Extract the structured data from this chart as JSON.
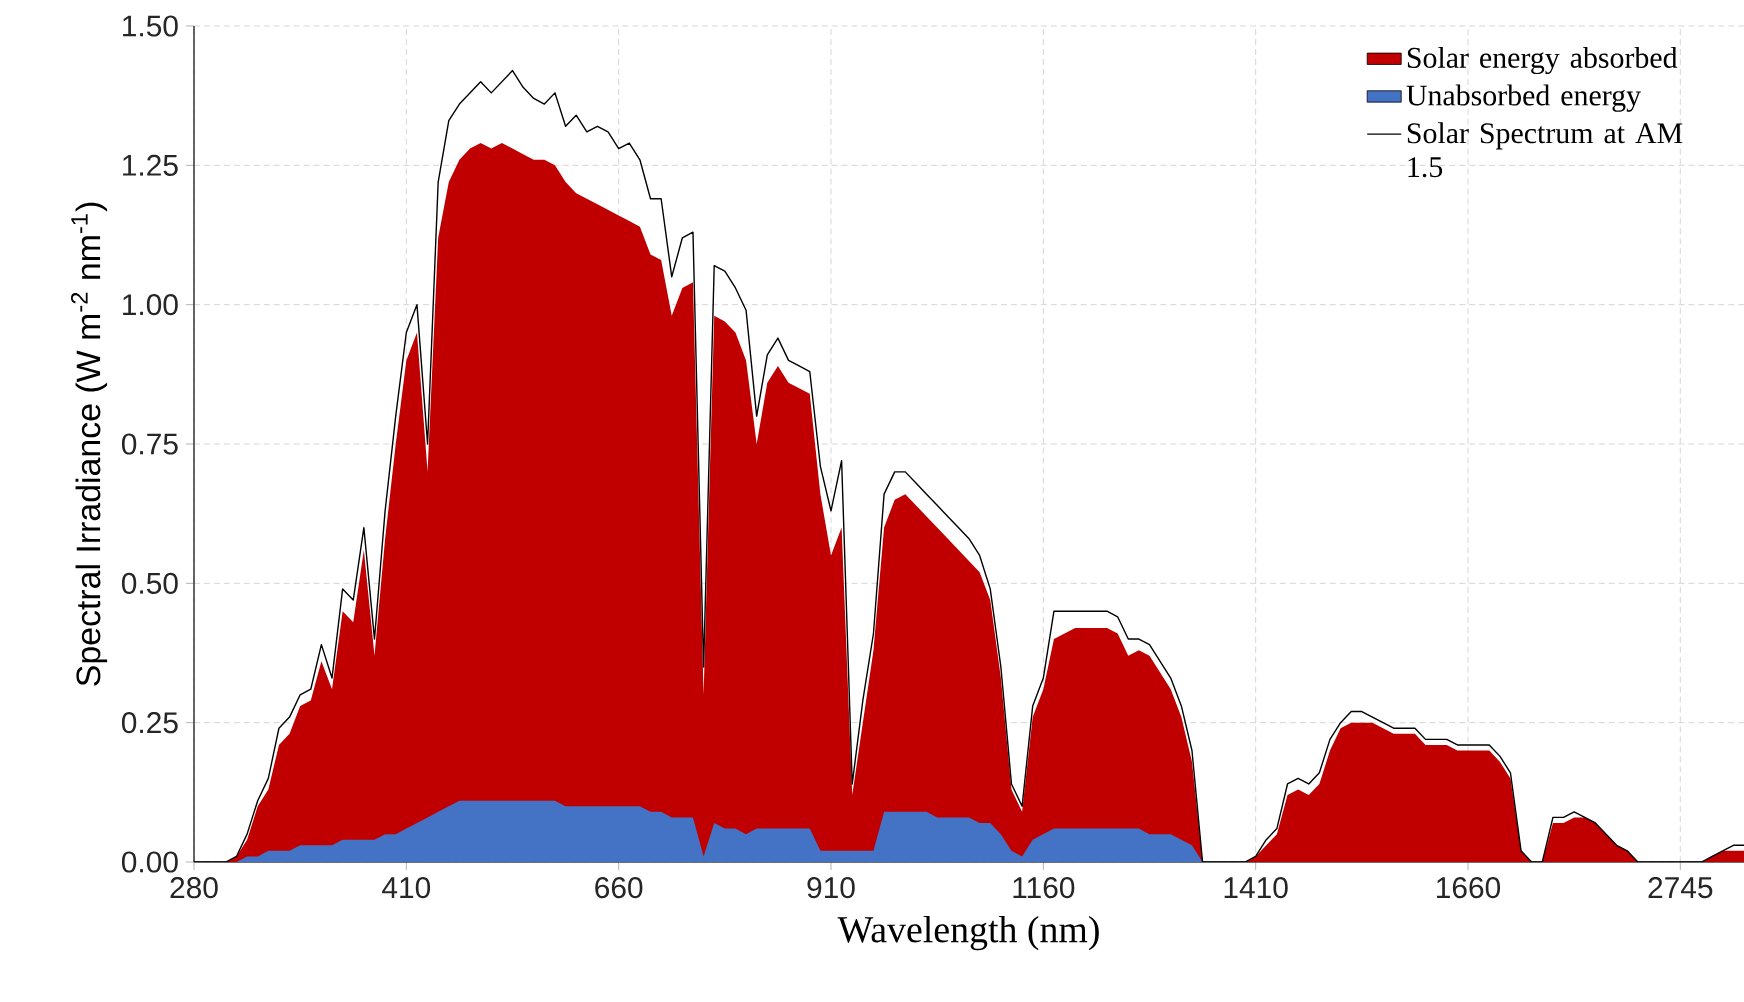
{
  "chart_data": {
    "type": "area",
    "xlabel": "Wavelength  (nm)",
    "ylabel": "Spectral Irradiance (W m$^{-2}$ nm$^{-1}$)",
    "categories": [
      "280",
      null,
      null,
      null,
      null,
      null,
      null,
      null,
      null,
      null,
      null,
      null,
      null,
      null,
      null,
      null,
      null,
      null,
      null,
      null,
      "410",
      null,
      null,
      null,
      null,
      null,
      null,
      null,
      null,
      null,
      null,
      null,
      null,
      null,
      null,
      null,
      null,
      null,
      null,
      null,
      "660",
      null,
      null,
      null,
      null,
      null,
      null,
      null,
      null,
      null,
      null,
      null,
      null,
      null,
      null,
      null,
      null,
      null,
      null,
      null,
      "910",
      null,
      null,
      null,
      null,
      null,
      null,
      null,
      null,
      null,
      null,
      null,
      null,
      null,
      null,
      null,
      null,
      null,
      null,
      null,
      "1160",
      null,
      null,
      null,
      null,
      null,
      null,
      null,
      null,
      null,
      null,
      null,
      null,
      null,
      null,
      null,
      null,
      null,
      null,
      null,
      "1410",
      null,
      null,
      null,
      null,
      null,
      null,
      null,
      null,
      null,
      null,
      null,
      null,
      null,
      null,
      null,
      null,
      null,
      null,
      null,
      "1660",
      null,
      null,
      null,
      null,
      null,
      null,
      null,
      null,
      null,
      null,
      null,
      null,
      null,
      null,
      null,
      null,
      null,
      null,
      null,
      "2745",
      null,
      null,
      null,
      null,
      null,
      null
    ],
    "series": [
      {
        "name": "Solar energy absorbed",
        "color": "#c00000",
        "values": [
          0,
          0,
          0,
          0,
          0.01,
          0.04,
          0.1,
          0.13,
          0.21,
          0.23,
          0.28,
          0.29,
          0.36,
          0.31,
          0.45,
          0.43,
          0.56,
          0.37,
          0.58,
          0.75,
          0.9,
          0.95,
          0.7,
          1.12,
          1.22,
          1.26,
          1.28,
          1.29,
          1.28,
          1.29,
          1.28,
          1.27,
          1.26,
          1.26,
          1.25,
          1.22,
          1.2,
          1.19,
          1.18,
          1.17,
          1.16,
          1.15,
          1.14,
          1.09,
          1.08,
          0.98,
          1.03,
          1.04,
          0.3,
          0.98,
          0.97,
          0.95,
          0.9,
          0.75,
          0.86,
          0.89,
          0.86,
          0.85,
          0.84,
          0.66,
          0.55,
          0.6,
          0.12,
          0.25,
          0.38,
          0.6,
          0.65,
          0.66,
          0.64,
          0.62,
          0.6,
          0.58,
          0.56,
          0.54,
          0.52,
          0.47,
          0.33,
          0.13,
          0.09,
          0.26,
          0.31,
          0.4,
          0.41,
          0.42,
          0.42,
          0.42,
          0.42,
          0.41,
          0.37,
          0.38,
          0.37,
          0.34,
          0.31,
          0.26,
          0.18,
          0,
          0,
          0,
          0,
          0,
          0.01,
          0.03,
          0.05,
          0.12,
          0.13,
          0.12,
          0.14,
          0.2,
          0.24,
          0.25,
          0.25,
          0.25,
          0.24,
          0.23,
          0.23,
          0.23,
          0.21,
          0.21,
          0.21,
          0.2,
          0.2,
          0.2,
          0.2,
          0.18,
          0.15,
          0.02,
          0,
          0,
          0.07,
          0.07,
          0.08,
          0.08,
          0.07,
          0.05,
          0.03,
          0.02,
          0,
          0,
          0,
          0,
          0,
          0,
          0,
          0.01,
          0.02,
          0.02,
          0.02
        ]
      },
      {
        "name": "Unabsorbed energy",
        "color": "#4472c4",
        "values": [
          0,
          0,
          0,
          0,
          0,
          0.01,
          0.01,
          0.02,
          0.02,
          0.02,
          0.03,
          0.03,
          0.03,
          0.03,
          0.04,
          0.04,
          0.04,
          0.04,
          0.05,
          0.05,
          0.06,
          0.07,
          0.08,
          0.09,
          0.1,
          0.11,
          0.11,
          0.11,
          0.11,
          0.11,
          0.11,
          0.11,
          0.11,
          0.11,
          0.11,
          0.1,
          0.1,
          0.1,
          0.1,
          0.1,
          0.1,
          0.1,
          0.1,
          0.09,
          0.09,
          0.08,
          0.08,
          0.08,
          0.01,
          0.07,
          0.06,
          0.06,
          0.05,
          0.06,
          0.06,
          0.06,
          0.06,
          0.06,
          0.06,
          0.02,
          0.02,
          0.02,
          0.02,
          0.02,
          0.02,
          0.09,
          0.09,
          0.09,
          0.09,
          0.09,
          0.08,
          0.08,
          0.08,
          0.08,
          0.07,
          0.07,
          0.05,
          0.02,
          0.01,
          0.04,
          0.05,
          0.06,
          0.06,
          0.06,
          0.06,
          0.06,
          0.06,
          0.06,
          0.06,
          0.06,
          0.05,
          0.05,
          0.05,
          0.04,
          0.03,
          0,
          0,
          0,
          0,
          0,
          0,
          0,
          0,
          0,
          0,
          0,
          0,
          0,
          0,
          0,
          0,
          0,
          0,
          0,
          0,
          0,
          0,
          0,
          0,
          0,
          0,
          0,
          0,
          0,
          0,
          0,
          0,
          0,
          0,
          0,
          0,
          0,
          0,
          0,
          0,
          0,
          0,
          0,
          0,
          0,
          0,
          0,
          0,
          0,
          0,
          0,
          0
        ]
      },
      {
        "name": "Solar Spectrum at AM 1.5",
        "type": "line",
        "color": "#000000",
        "values": [
          0,
          0,
          0,
          0,
          0.01,
          0.05,
          0.11,
          0.15,
          0.24,
          0.26,
          0.3,
          0.31,
          0.39,
          0.33,
          0.49,
          0.47,
          0.6,
          0.4,
          0.63,
          0.8,
          0.95,
          1.0,
          0.75,
          1.22,
          1.33,
          1.36,
          1.38,
          1.4,
          1.38,
          1.4,
          1.42,
          1.39,
          1.37,
          1.36,
          1.38,
          1.32,
          1.34,
          1.31,
          1.32,
          1.31,
          1.28,
          1.29,
          1.26,
          1.19,
          1.19,
          1.05,
          1.12,
          1.13,
          0.35,
          1.07,
          1.06,
          1.03,
          0.99,
          0.8,
          0.91,
          0.94,
          0.9,
          0.89,
          0.88,
          0.71,
          0.63,
          0.72,
          0.14,
          0.29,
          0.41,
          0.66,
          0.7,
          0.7,
          0.68,
          0.66,
          0.64,
          0.62,
          0.6,
          0.58,
          0.55,
          0.49,
          0.35,
          0.14,
          0.1,
          0.28,
          0.33,
          0.45,
          0.45,
          0.45,
          0.45,
          0.45,
          0.45,
          0.44,
          0.4,
          0.4,
          0.39,
          0.36,
          0.33,
          0.28,
          0.2,
          0,
          0,
          0,
          0,
          0,
          0.01,
          0.04,
          0.06,
          0.14,
          0.15,
          0.14,
          0.16,
          0.22,
          0.25,
          0.27,
          0.27,
          0.26,
          0.25,
          0.24,
          0.24,
          0.24,
          0.22,
          0.22,
          0.22,
          0.21,
          0.21,
          0.21,
          0.21,
          0.19,
          0.16,
          0.02,
          0,
          0,
          0.08,
          0.08,
          0.09,
          0.08,
          0.07,
          0.05,
          0.03,
          0.02,
          0,
          0,
          0,
          0,
          0,
          0,
          0,
          0.01,
          0.02,
          0.03,
          0.03
        ]
      }
    ],
    "ylim": [
      0,
      1.5
    ],
    "yticks": [
      {
        "value": 0,
        "label": "0.00"
      },
      {
        "value": 0.25,
        "label": "0.25"
      },
      {
        "value": 0.5,
        "label": "0.50"
      },
      {
        "value": 0.75,
        "label": "0.75"
      },
      {
        "value": 1,
        "label": "1.00"
      },
      {
        "value": 1.25,
        "label": "1.25"
      },
      {
        "value": 1.5,
        "label": "1.50"
      }
    ],
    "grid": true,
    "legend": "top right"
  }
}
